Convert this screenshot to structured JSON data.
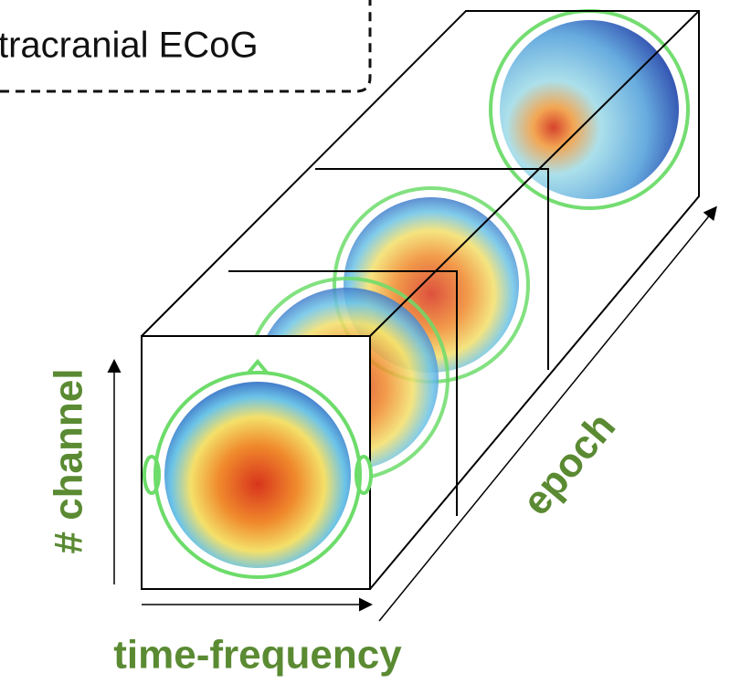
{
  "labels": {
    "title": "tracranial ECoG",
    "y_axis": "# channel",
    "x_axis": "time-frequency",
    "depth_axis": "epoch"
  }
}
